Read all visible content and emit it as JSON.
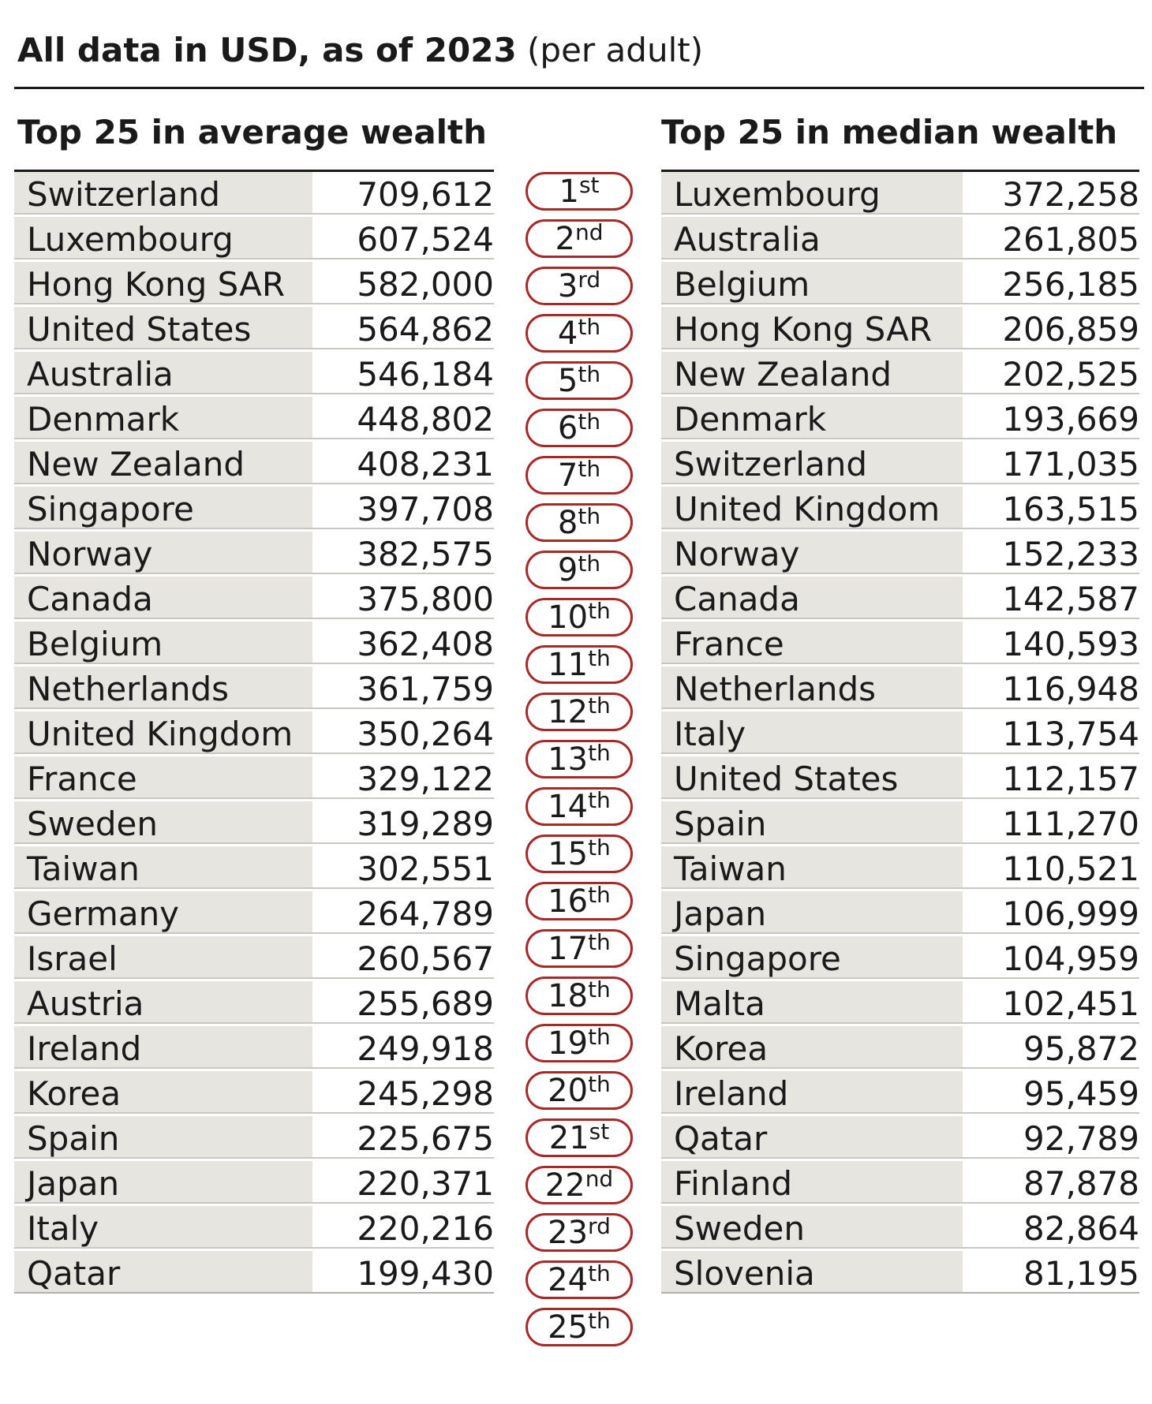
{
  "header": {
    "title_bold": "All data in USD, as of 2023",
    "title_light": "(per adult)"
  },
  "average": {
    "heading": "Top 25 in average wealth",
    "rows": [
      {
        "country": "Switzerland",
        "value": "709,612"
      },
      {
        "country": "Luxembourg",
        "value": "607,524"
      },
      {
        "country": "Hong Kong SAR",
        "value": "582,000"
      },
      {
        "country": "United States",
        "value": "564,862"
      },
      {
        "country": "Australia",
        "value": "546,184"
      },
      {
        "country": "Denmark",
        "value": "448,802"
      },
      {
        "country": "New Zealand",
        "value": "408,231"
      },
      {
        "country": "Singapore",
        "value": "397,708"
      },
      {
        "country": "Norway",
        "value": "382,575"
      },
      {
        "country": "Canada",
        "value": "375,800"
      },
      {
        "country": "Belgium",
        "value": "362,408"
      },
      {
        "country": "Netherlands",
        "value": "361,759"
      },
      {
        "country": "United Kingdom",
        "value": "350,264"
      },
      {
        "country": "France",
        "value": "329,122"
      },
      {
        "country": "Sweden",
        "value": "319,289"
      },
      {
        "country": "Taiwan",
        "value": "302,551"
      },
      {
        "country": "Germany",
        "value": "264,789"
      },
      {
        "country": "Israel",
        "value": "260,567"
      },
      {
        "country": "Austria",
        "value": "255,689"
      },
      {
        "country": "Ireland",
        "value": "249,918"
      },
      {
        "country": "Korea",
        "value": "245,298"
      },
      {
        "country": "Spain",
        "value": "225,675"
      },
      {
        "country": "Japan",
        "value": "220,371"
      },
      {
        "country": "Italy",
        "value": "220,216"
      },
      {
        "country": "Qatar",
        "value": "199,430"
      }
    ]
  },
  "ranks": [
    {
      "num": "1",
      "suffix": "st"
    },
    {
      "num": "2",
      "suffix": "nd"
    },
    {
      "num": "3",
      "suffix": "rd"
    },
    {
      "num": "4",
      "suffix": "th"
    },
    {
      "num": "5",
      "suffix": "th"
    },
    {
      "num": "6",
      "suffix": "th"
    },
    {
      "num": "7",
      "suffix": "th"
    },
    {
      "num": "8",
      "suffix": "th"
    },
    {
      "num": "9",
      "suffix": "th"
    },
    {
      "num": "10",
      "suffix": "th"
    },
    {
      "num": "11",
      "suffix": "th"
    },
    {
      "num": "12",
      "suffix": "th"
    },
    {
      "num": "13",
      "suffix": "th"
    },
    {
      "num": "14",
      "suffix": "th"
    },
    {
      "num": "15",
      "suffix": "th"
    },
    {
      "num": "16",
      "suffix": "th"
    },
    {
      "num": "17",
      "suffix": "th"
    },
    {
      "num": "18",
      "suffix": "th"
    },
    {
      "num": "19",
      "suffix": "th"
    },
    {
      "num": "20",
      "suffix": "th"
    },
    {
      "num": "21",
      "suffix": "st"
    },
    {
      "num": "22",
      "suffix": "nd"
    },
    {
      "num": "23",
      "suffix": "rd"
    },
    {
      "num": "24",
      "suffix": "th"
    },
    {
      "num": "25",
      "suffix": "th"
    }
  ],
  "median": {
    "heading": "Top 25 in median wealth",
    "rows": [
      {
        "country": "Luxembourg",
        "value": "372,258"
      },
      {
        "country": "Australia",
        "value": "261,805"
      },
      {
        "country": "Belgium",
        "value": "256,185"
      },
      {
        "country": "Hong Kong SAR",
        "value": "206,859"
      },
      {
        "country": "New Zealand",
        "value": "202,525"
      },
      {
        "country": "Denmark",
        "value": "193,669"
      },
      {
        "country": "Switzerland",
        "value": "171,035"
      },
      {
        "country": "United Kingdom",
        "value": "163,515"
      },
      {
        "country": "Norway",
        "value": "152,233"
      },
      {
        "country": "Canada",
        "value": "142,587"
      },
      {
        "country": "France",
        "value": "140,593"
      },
      {
        "country": "Netherlands",
        "value": "116,948"
      },
      {
        "country": "Italy",
        "value": "113,754"
      },
      {
        "country": "United States",
        "value": "112,157"
      },
      {
        "country": "Spain",
        "value": "111,270"
      },
      {
        "country": "Taiwan",
        "value": "110,521"
      },
      {
        "country": "Japan",
        "value": "106,999"
      },
      {
        "country": "Singapore",
        "value": "104,959"
      },
      {
        "country": "Malta",
        "value": "102,451"
      },
      {
        "country": "Korea",
        "value": "95,872"
      },
      {
        "country": "Ireland",
        "value": "95,459"
      },
      {
        "country": "Qatar",
        "value": "92,789"
      },
      {
        "country": "Finland",
        "value": "87,878"
      },
      {
        "country": "Sweden",
        "value": "82,864"
      },
      {
        "country": "Slovenia",
        "value": "81,195"
      }
    ]
  },
  "colors": {
    "accent": "#a52a2a",
    "row_fill": "#e6e5e0",
    "text": "#1a1a1a"
  }
}
